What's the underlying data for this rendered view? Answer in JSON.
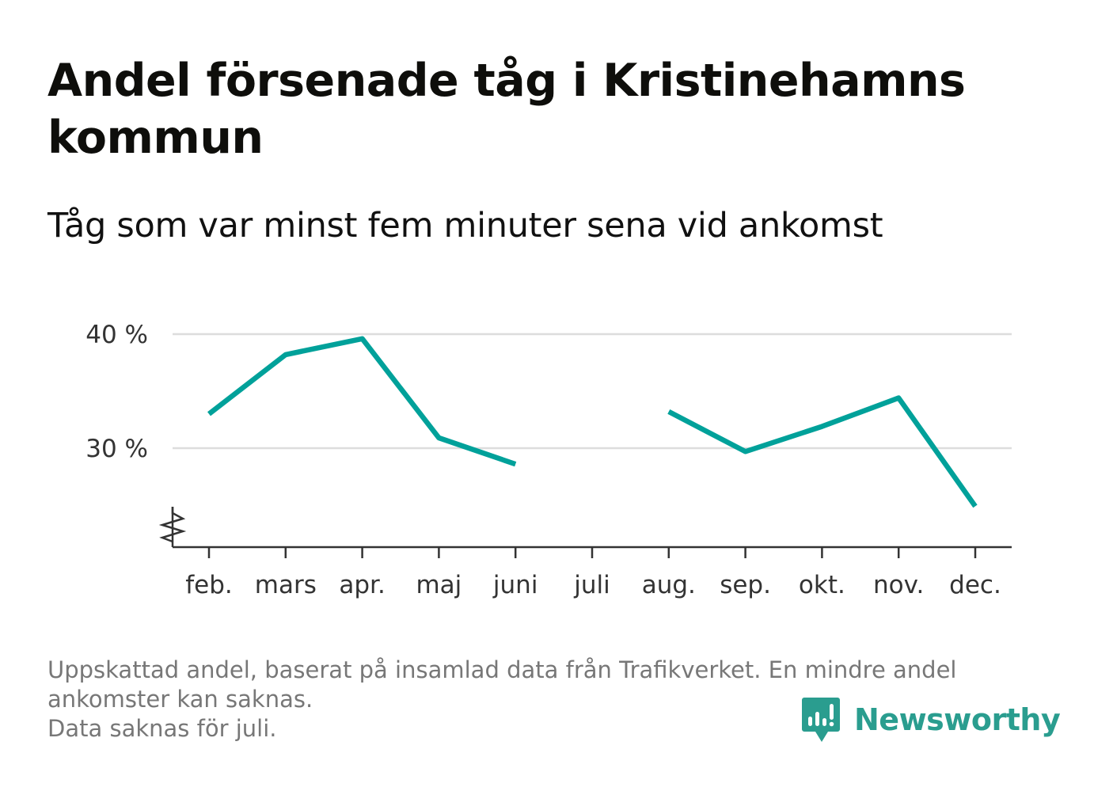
{
  "header": {
    "title": "Andel försenade tåg i Kristinehamns kommun",
    "subtitle": "Tåg som var minst fem minuter sena vid ankomst"
  },
  "chart_data": {
    "type": "line",
    "categories": [
      "feb.",
      "mars",
      "apr.",
      "maj",
      "juni",
      "juli",
      "aug.",
      "sep.",
      "okt.",
      "nov.",
      "dec."
    ],
    "series": [
      {
        "values": [
          33.0,
          38.2,
          39.6,
          30.9,
          28.6,
          null,
          33.2,
          29.7,
          31.9,
          34.4,
          24.9
        ]
      }
    ],
    "y_ticks": [
      30,
      40
    ],
    "y_tick_labels": [
      "30 %",
      "40 %"
    ],
    "ylim": [
      21.5,
      42
    ],
    "axis_break": true,
    "grid": true,
    "line_color": "#00a19a"
  },
  "footnote": {
    "lines": [
      "Uppskattad andel, baserat på insamlad data från Trafikverket. En mindre andel",
      "ankomster kan saknas.",
      "Data saknas för juli."
    ]
  },
  "brand": {
    "name": "Newsworthy",
    "icon": "newsworthy-logo-icon",
    "color": "#2a9d8f"
  }
}
